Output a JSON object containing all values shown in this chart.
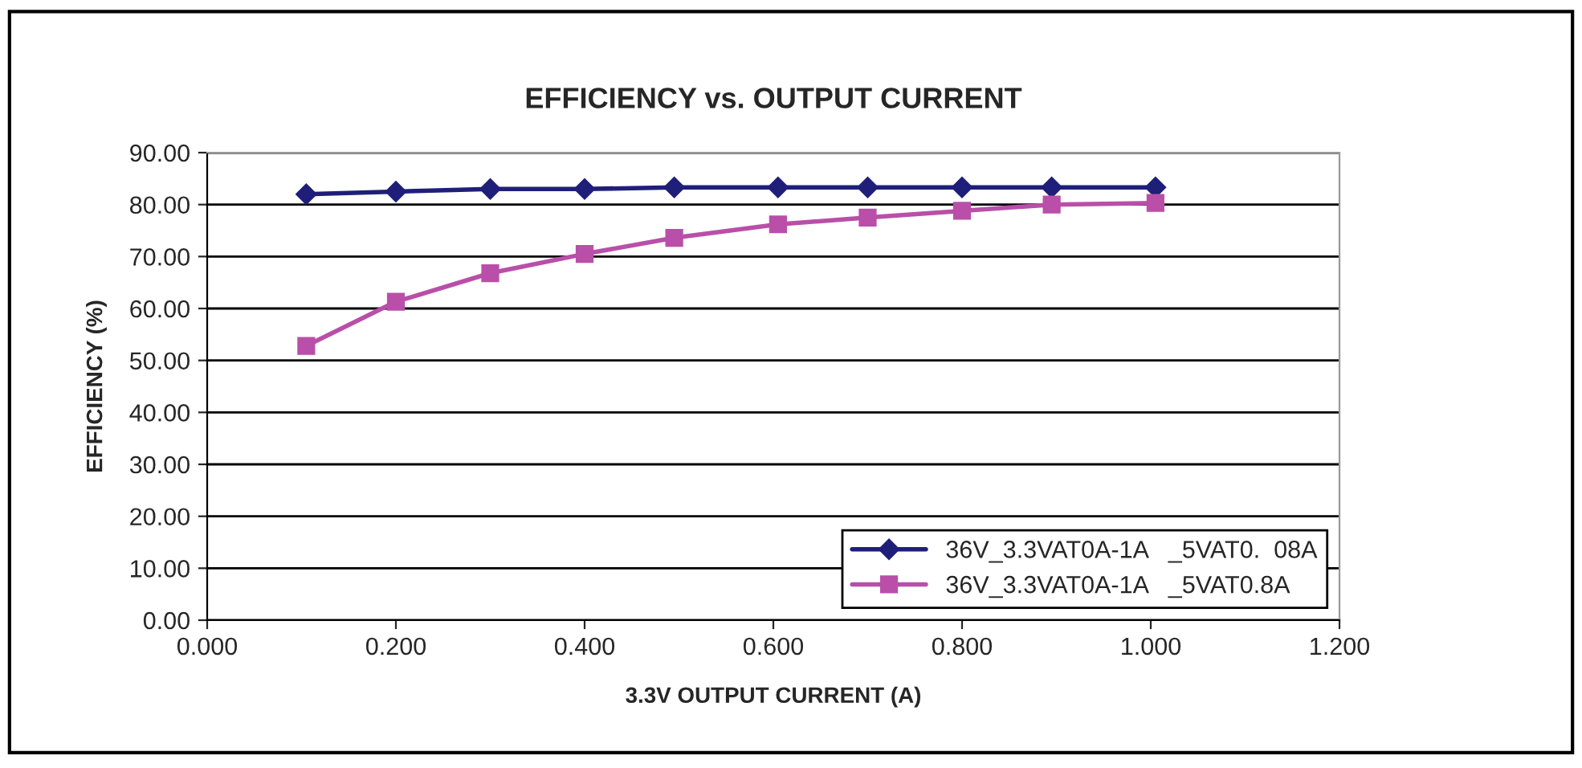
{
  "chart_data": {
    "type": "line",
    "title": "EFFICIENCY vs. OUTPUT CURRENT",
    "xlabel": "3.3V OUTPUT CURRENT (A)",
    "ylabel": "EFFICIENCY (%)",
    "series": [
      {
        "name": "36V_3.3VAT0A-1A   _5VAT0.  08A",
        "color": "#1f1f7a",
        "marker": "diamond",
        "x": [
          0.105,
          0.2,
          0.3,
          0.4,
          0.495,
          0.605,
          0.7,
          0.8,
          0.895,
          1.005
        ],
        "values": [
          82.0,
          82.5,
          83.0,
          83.0,
          83.3,
          83.3,
          83.3,
          83.3,
          83.3,
          83.3
        ]
      },
      {
        "name": "36V_3.3VAT0A-1A   _5VAT0.8A",
        "color": "#b94fa8",
        "marker": "square",
        "x": [
          0.105,
          0.2,
          0.3,
          0.4,
          0.495,
          0.605,
          0.7,
          0.8,
          0.895,
          1.005
        ],
        "values": [
          52.8,
          61.3,
          66.8,
          70.5,
          73.6,
          76.2,
          77.5,
          78.8,
          80.0,
          80.3
        ]
      }
    ],
    "xlim": [
      0,
      1.2
    ],
    "xticks": [
      {
        "value": 0,
        "label": "0.000"
      },
      {
        "value": 0.2,
        "label": "0.200"
      },
      {
        "value": 0.4,
        "label": "0.400"
      },
      {
        "value": 0.6,
        "label": "0.600"
      },
      {
        "value": 0.8,
        "label": "0.800"
      },
      {
        "value": 1.0,
        "label": "1.000"
      },
      {
        "value": 1.2,
        "label": "1.200"
      }
    ],
    "ylim": [
      0,
      90
    ],
    "yticks": [
      {
        "value": 0,
        "label": "0.00"
      },
      {
        "value": 10,
        "label": "10.00"
      },
      {
        "value": 20,
        "label": "20.00"
      },
      {
        "value": 30,
        "label": "30.00"
      },
      {
        "value": 40,
        "label": "40.00"
      },
      {
        "value": 50,
        "label": "50.00"
      },
      {
        "value": 60,
        "label": "60.00"
      },
      {
        "value": 70,
        "label": "70.00"
      },
      {
        "value": 80,
        "label": "80.00"
      },
      {
        "value": 90,
        "label": "90.00"
      }
    ],
    "grid": "y",
    "legend": "bottom right",
    "line_style": "solid"
  }
}
